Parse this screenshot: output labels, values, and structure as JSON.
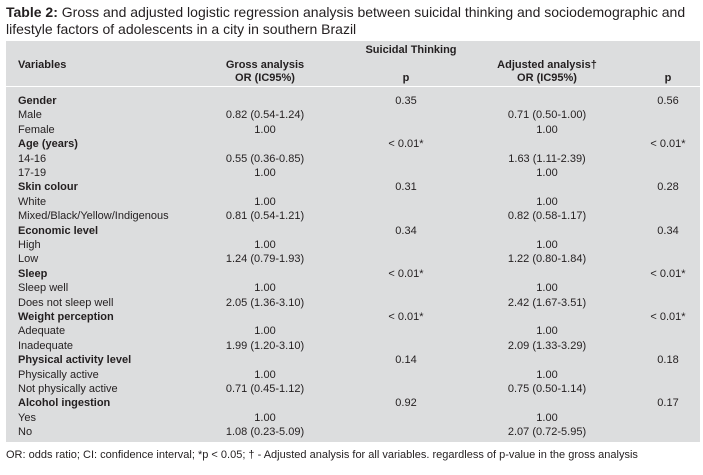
{
  "table": {
    "title_label": "Table 2:",
    "title_text": " Gross and adjusted logistic regression analysis between suicidal thinking and sociodemographic and lifestyle factors of adolescents in a city in southern Brazil",
    "group_header": "Suicidal Thinking",
    "headers": {
      "variables": "Variables",
      "gross_1": "Gross analysis",
      "gross_2": "OR (IC95%)",
      "p1": "p",
      "adj_1": "Adjusted analysis†",
      "adj_2": "OR (IC95%)",
      "p2": "p"
    },
    "rows": [
      {
        "label": "Gender",
        "bold": true,
        "gross": "",
        "p1": "0.35",
        "adj": "",
        "p2": "0.56"
      },
      {
        "label": "Male",
        "bold": false,
        "gross": "0.82 (0.54-1.24)",
        "p1": "",
        "adj": "0.71 (0.50-1.00)",
        "p2": ""
      },
      {
        "label": "Female",
        "bold": false,
        "gross": "1.00",
        "p1": "",
        "adj": "1.00",
        "p2": ""
      },
      {
        "label": "Age (years)",
        "bold": true,
        "gross": "",
        "p1": "< 0.01*",
        "adj": "",
        "p2": "< 0.01*"
      },
      {
        "label": "14-16",
        "bold": false,
        "gross": "0.55 (0.36-0.85)",
        "p1": "",
        "adj": "1.63 (1.11-2.39)",
        "p2": ""
      },
      {
        "label": "17-19",
        "bold": false,
        "gross": "1.00",
        "p1": "",
        "adj": "1.00",
        "p2": ""
      },
      {
        "label": "Skin colour",
        "bold": true,
        "gross": "",
        "p1": "0.31",
        "adj": "",
        "p2": "0.28"
      },
      {
        "label": "White",
        "bold": false,
        "gross": "1.00",
        "p1": "",
        "adj": "1.00",
        "p2": ""
      },
      {
        "label": "Mixed/Black/Yellow/Indigenous",
        "bold": false,
        "gross": "0.81 (0.54-1.21)",
        "p1": "",
        "adj": "0.82 (0.58-1.17)",
        "p2": ""
      },
      {
        "label": "Economic level",
        "bold": true,
        "gross": "",
        "p1": "0.34",
        "adj": "",
        "p2": "0.34"
      },
      {
        "label": "High",
        "bold": false,
        "gross": "1.00",
        "p1": "",
        "adj": "1.00",
        "p2": ""
      },
      {
        "label": "Low",
        "bold": false,
        "gross": "1.24 (0.79-1.93)",
        "p1": "",
        "adj": "1.22 (0.80-1.84)",
        "p2": ""
      },
      {
        "label": "Sleep",
        "bold": true,
        "gross": "",
        "p1": "< 0.01*",
        "adj": "",
        "p2": "< 0.01*"
      },
      {
        "label": "Sleep well",
        "bold": false,
        "gross": "1.00",
        "p1": "",
        "adj": "1.00",
        "p2": ""
      },
      {
        "label": "Does not sleep well",
        "bold": false,
        "gross": "2.05 (1.36-3.10)",
        "p1": "",
        "adj": "2.42 (1.67-3.51)",
        "p2": ""
      },
      {
        "label": "Weight perception",
        "bold": true,
        "gross": "",
        "p1": "< 0.01*",
        "adj": "",
        "p2": "< 0.01*"
      },
      {
        "label": "Adequate",
        "bold": false,
        "gross": "1.00",
        "p1": "",
        "adj": "1.00",
        "p2": ""
      },
      {
        "label": "Inadequate",
        "bold": false,
        "gross": "1.99 (1.20-3.10)",
        "p1": "",
        "adj": "2.09 (1.33-3.29)",
        "p2": ""
      },
      {
        "label": "Physical activity level",
        "bold": true,
        "gross": "",
        "p1": "0.14",
        "adj": "",
        "p2": "0.18"
      },
      {
        "label": "Physically active",
        "bold": false,
        "gross": "1.00",
        "p1": "",
        "adj": "1.00",
        "p2": ""
      },
      {
        "label": "Not physically active",
        "bold": false,
        "gross": "0.71 (0.45-1.12)",
        "p1": "",
        "adj": "0.75 (0.50-1.14)",
        "p2": ""
      },
      {
        "label": "Alcohol ingestion",
        "bold": true,
        "gross": "",
        "p1": "0.92",
        "adj": "",
        "p2": "0.17"
      },
      {
        "label": "Yes",
        "bold": false,
        "gross": "1.00",
        "p1": "",
        "adj": "1.00",
        "p2": ""
      },
      {
        "label": "No",
        "bold": false,
        "gross": "1.08 (0.23-5.09)",
        "p1": "",
        "adj": "2.07 (0.72-5.95)",
        "p2": ""
      }
    ],
    "footnote": "OR: odds ratio; CI: confidence interval; *p < 0.05; † - Adjusted analysis for all variables. regardless of p-value in the gross analysis"
  }
}
